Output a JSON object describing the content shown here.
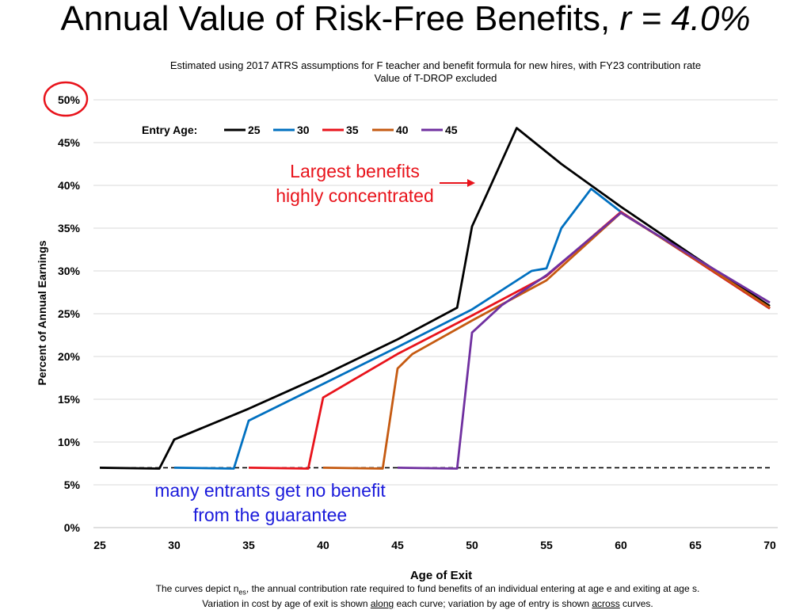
{
  "title": {
    "main": "Annual Value of Risk-Free Benefits,",
    "rate": "r = 4.0%"
  },
  "subtitle": {
    "line1": "Estimated using 2017 ATRS assumptions for F teacher and benefit formula for new hires, with FY23 contribution rate",
    "line2": "Value of T-DROP excluded"
  },
  "footer": {
    "l1_a": "The curves depict n",
    "l1_sub": "es",
    "l1_b": ", the annual contribution rate required to fund benefits of an individual entering at age e and exiting at age s.",
    "l2_a": "Variation in cost by age of exit is shown ",
    "l2_u1": "along",
    "l2_b": " each curve;  variation by age of entry is shown ",
    "l2_u2": "across",
    "l2_c": " curves."
  },
  "annotations": {
    "top_line1": "Largest benefits",
    "top_line2": "highly concentrated",
    "bottom_line1": "many entrants get no benefit",
    "bottom_line2": "from the guarantee"
  },
  "colors": {
    "annotation_red": "#e8131b",
    "annotation_blue": "#1a1adb",
    "circle": "#e8131b",
    "grid": "#d9d9d9"
  },
  "chart_data": {
    "type": "line",
    "xlabel": "Age of Exit",
    "ylabel": "Percent of Annual Earnings",
    "xlim": [
      25,
      70
    ],
    "ylim": [
      0,
      50
    ],
    "xticks": [
      "25",
      "30",
      "35",
      "40",
      "45",
      "50",
      "55",
      "60",
      "65",
      "70"
    ],
    "yticks": [
      "0%",
      "5%",
      "10%",
      "15%",
      "20%",
      "25%",
      "30%",
      "35%",
      "40%",
      "45%",
      "50%"
    ],
    "grid": "horizontal",
    "legend_title": "Entry Age:",
    "legend_position": "top-left",
    "reference_line": {
      "y": 7.0,
      "style": "dashed",
      "color": "#000000",
      "x": [
        25,
        70
      ]
    },
    "series": [
      {
        "name": "25",
        "color": "#000000",
        "x": [
          25,
          29,
          30,
          35,
          40,
          45,
          49,
          50,
          51,
          53,
          56,
          60,
          65,
          70
        ],
        "y": [
          7.0,
          6.9,
          10.3,
          13.9,
          17.8,
          22.0,
          25.7,
          35.2,
          39.0,
          46.7,
          42.5,
          37.5,
          31.6,
          25.9
        ]
      },
      {
        "name": "30",
        "color": "#0070c0",
        "x": [
          30,
          34,
          35,
          40,
          45,
          50,
          54,
          55,
          56,
          58,
          60,
          65,
          70
        ],
        "y": [
          7.0,
          6.9,
          12.5,
          16.8,
          21.1,
          25.5,
          30.0,
          30.3,
          35.0,
          39.6,
          36.9,
          31.3,
          25.6
        ]
      },
      {
        "name": "35",
        "color": "#e8131b",
        "x": [
          35,
          39,
          40,
          45,
          50,
          55,
          60,
          65,
          70
        ],
        "y": [
          7.0,
          6.9,
          15.2,
          20.3,
          24.8,
          29.4,
          36.9,
          31.3,
          25.6
        ]
      },
      {
        "name": "40",
        "color": "#c55a11",
        "x": [
          40,
          44,
          45,
          46,
          50,
          55,
          60,
          65,
          70
        ],
        "y": [
          7.0,
          6.9,
          18.6,
          20.3,
          24.2,
          28.9,
          36.8,
          31.4,
          25.7
        ]
      },
      {
        "name": "45",
        "color": "#7030a0",
        "x": [
          45,
          49,
          50,
          52,
          55,
          60,
          65,
          70
        ],
        "y": [
          7.0,
          6.9,
          22.8,
          26.0,
          29.5,
          36.8,
          31.5,
          26.3
        ]
      }
    ]
  }
}
